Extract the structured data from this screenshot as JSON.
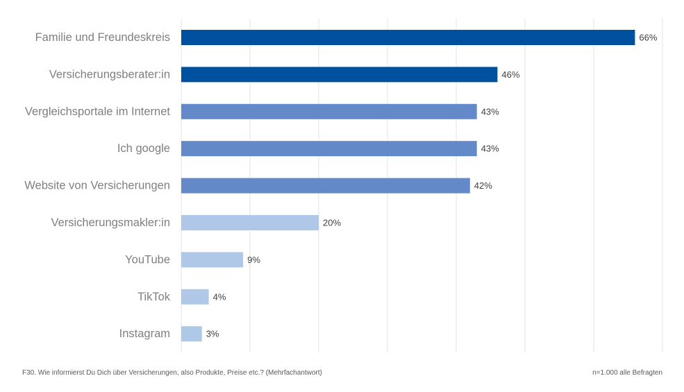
{
  "chart_data": {
    "type": "bar",
    "orientation": "horizontal",
    "categories": [
      "Familie und Freundeskreis",
      "Versicherungsberater:in",
      "Vergleichsportale im Internet",
      "Ich google",
      "Website von Versicherungen",
      "Versicherungsmakler:in",
      "YouTube",
      "TikTok",
      "Instagram"
    ],
    "values": [
      66,
      46,
      43,
      43,
      42,
      20,
      9,
      4,
      3
    ],
    "value_labels": [
      "66%",
      "46%",
      "43%",
      "43%",
      "42%",
      "20%",
      "9%",
      "4%",
      "3%"
    ],
    "colors": [
      "#0050a0",
      "#0050a0",
      "#6389c9",
      "#6389c9",
      "#6389c9",
      "#b0c8e8",
      "#b0c8e8",
      "#b0c8e8",
      "#b0c8e8"
    ],
    "xlim": [
      0,
      70
    ],
    "grid": true,
    "legend": false
  },
  "footer": {
    "question": "F30. Wie informierst Du Dich über Versicherungen, also Produkte, Preise etc.? (Mehrfachantwort)",
    "sample": "n=1.000 alle Befragten"
  }
}
